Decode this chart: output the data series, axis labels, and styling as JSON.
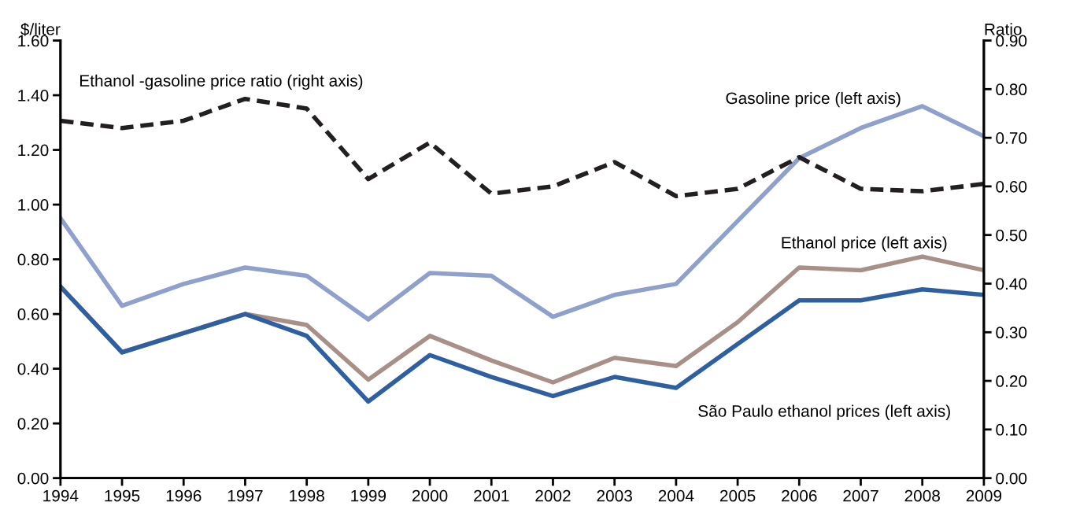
{
  "chart_data": {
    "type": "line",
    "ylabel": "$/liter",
    "y2label": "Ratio",
    "x": [
      1994,
      1995,
      1996,
      1997,
      1998,
      1999,
      2000,
      2001,
      2002,
      2003,
      2004,
      2005,
      2006,
      2007,
      2008,
      2009
    ],
    "xlim": [
      1994,
      2009
    ],
    "xticks": [
      1994,
      1995,
      1996,
      1997,
      1998,
      1999,
      2000,
      2001,
      2002,
      2003,
      2004,
      2005,
      2006,
      2007,
      2008,
      2009
    ],
    "ylim": [
      0,
      1.6
    ],
    "yticks": [
      {
        "value": 0,
        "label": "0.00"
      },
      {
        "value": 0.2,
        "label": "0.20"
      },
      {
        "value": 0.4,
        "label": "0.40"
      },
      {
        "value": 0.6,
        "label": "0.60"
      },
      {
        "value": 0.8,
        "label": "0.80"
      },
      {
        "value": 1.0,
        "label": "1.00"
      },
      {
        "value": 1.2,
        "label": "1.20"
      },
      {
        "value": 1.4,
        "label": "1.40"
      },
      {
        "value": 1.6,
        "label": "1.60"
      }
    ],
    "y2lim": [
      0,
      0.9
    ],
    "y2ticks": [
      {
        "value": 0,
        "label": "0.00"
      },
      {
        "value": 0.1,
        "label": "0.10"
      },
      {
        "value": 0.2,
        "label": "0.20"
      },
      {
        "value": 0.3,
        "label": "0.30"
      },
      {
        "value": 0.4,
        "label": "0.40"
      },
      {
        "value": 0.5,
        "label": "0.50"
      },
      {
        "value": 0.6,
        "label": "0.60"
      },
      {
        "value": 0.7,
        "label": "0.70"
      },
      {
        "value": 0.8,
        "label": "0.80"
      },
      {
        "value": 0.9,
        "label": "0.90"
      }
    ],
    "grid": false,
    "legend": false,
    "marker": "none",
    "series": [
      {
        "name": "Ethanol -gasoline price ratio (right axis)",
        "color": "#231f20",
        "axis": "y2",
        "line_style": "dashed",
        "values": [
          0.735,
          0.72,
          0.735,
          0.78,
          0.76,
          0.615,
          0.69,
          0.585,
          0.6,
          0.65,
          0.58,
          0.595,
          0.66,
          0.595,
          0.59,
          0.605
        ]
      },
      {
        "name": "Gasoline price (left axis)",
        "color": "#8fa0cc",
        "values": [
          0.95,
          0.63,
          0.71,
          0.77,
          0.74,
          0.58,
          0.75,
          0.74,
          0.59,
          0.67,
          0.71,
          0.94,
          1.17,
          1.28,
          1.36,
          1.25
        ]
      },
      {
        "name": "Ethanol price (left axis)",
        "color": "#a89088",
        "values": [
          0.7,
          0.46,
          0.53,
          0.6,
          0.56,
          0.36,
          0.52,
          0.43,
          0.35,
          0.44,
          0.41,
          0.57,
          0.77,
          0.76,
          0.81,
          0.76
        ]
      },
      {
        "name": "São Paulo ethanol prices (left axis)",
        "color": "#2e5fa0",
        "values": [
          0.7,
          0.46,
          0.53,
          0.6,
          0.52,
          0.28,
          0.45,
          0.37,
          0.3,
          0.37,
          0.33,
          0.49,
          0.65,
          0.65,
          0.69,
          0.67
        ]
      }
    ]
  }
}
